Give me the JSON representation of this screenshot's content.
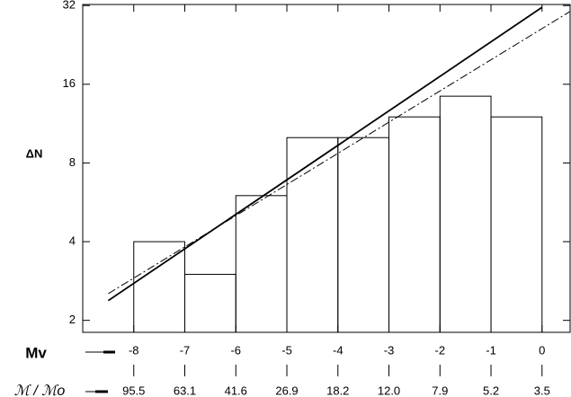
{
  "chart_data": {
    "type": "histogram",
    "ylabel": "ΔN",
    "xlabel": "Mv",
    "x2label": "ℳ / ℳo",
    "ylog": true,
    "xlim": [
      -9,
      0.55
    ],
    "ylim": [
      1.8,
      32.3
    ],
    "yticks": [
      2,
      4,
      8,
      16,
      32
    ],
    "xticks": [
      -8,
      -7,
      -6,
      -5,
      -4,
      -3,
      -2,
      -1,
      0
    ],
    "x2ticks": [
      {
        "value": -8,
        "label": "95.5"
      },
      {
        "value": -7,
        "label": "63.1"
      },
      {
        "value": -6,
        "label": "41.6"
      },
      {
        "value": -5,
        "label": "26.9"
      },
      {
        "value": -4,
        "label": "18.2"
      },
      {
        "value": -3,
        "label": "12.0"
      },
      {
        "value": -2,
        "label": "7.9"
      },
      {
        "value": -1,
        "label": "5.2"
      },
      {
        "value": 0,
        "label": "3.5"
      }
    ],
    "bins": [
      -8,
      -7,
      -6,
      -5,
      -4,
      -3,
      -2,
      -1,
      0
    ],
    "values": [
      4,
      3,
      6,
      10,
      10,
      12,
      14.4,
      12
    ],
    "color": "#000000",
    "lines": [
      {
        "style": "solid",
        "color": "#000000",
        "x": [
          -8.5,
          0
        ],
        "values": [
          2.38,
          31.5
        ]
      },
      {
        "style": "dashed",
        "color": "#000000",
        "x": [
          -8.5,
          0.54
        ],
        "values": [
          2.53,
          30.3
        ]
      }
    ]
  }
}
